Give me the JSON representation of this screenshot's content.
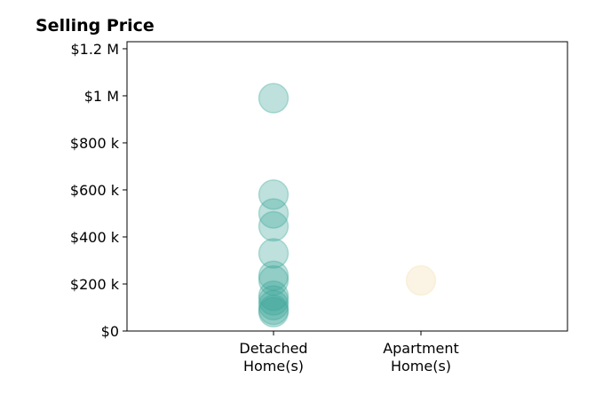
{
  "chart_data": {
    "type": "scatter",
    "title": "Selling Price",
    "xlabel": "",
    "ylabel": "",
    "categories": [
      [
        "Detached",
        "Home(s)"
      ],
      [
        "Apartment",
        "Home(s)"
      ]
    ],
    "ylim": [
      0,
      1230000
    ],
    "yticks": [
      0,
      200000,
      400000,
      600000,
      800000,
      1000000,
      1200000
    ],
    "ytick_labels": [
      "$0",
      "$200 k",
      "$400 k",
      "$600 k",
      "$800 k",
      "$1 M",
      "$1.2 M"
    ],
    "grid": false,
    "legend": "none",
    "series": [
      {
        "category_index": 0,
        "color": "#3aa597",
        "values": [
          990000,
          580000,
          500000,
          445000,
          330000,
          235000,
          215000,
          150000,
          130000,
          110000,
          90000,
          80000
        ]
      },
      {
        "category_index": 1,
        "color": "#f2dfae",
        "values": [
          215000
        ]
      }
    ]
  }
}
